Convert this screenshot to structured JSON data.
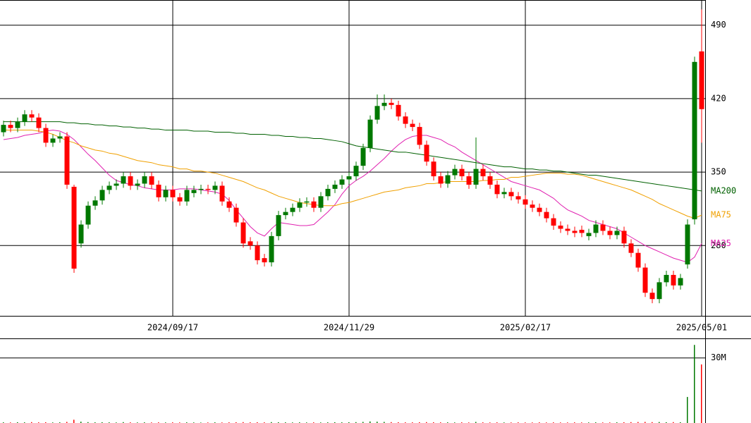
{
  "chart_data": {
    "type": "candlestick",
    "categories": [
      null,
      null,
      null,
      null,
      null,
      null,
      null,
      null,
      null,
      null,
      null,
      null,
      null,
      null,
      null,
      null,
      null,
      null,
      null,
      null,
      null,
      null,
      null,
      null,
      "2024/09/17",
      null,
      null,
      null,
      null,
      null,
      null,
      null,
      null,
      null,
      null,
      null,
      null,
      null,
      null,
      null,
      null,
      null,
      null,
      null,
      null,
      null,
      null,
      null,
      null,
      "2024/11/29",
      null,
      null,
      null,
      null,
      null,
      null,
      null,
      null,
      null,
      null,
      null,
      null,
      null,
      null,
      null,
      null,
      null,
      null,
      null,
      null,
      null,
      null,
      null,
      null,
      "2025/02/17",
      null,
      null,
      null,
      null,
      null,
      null,
      null,
      null,
      null,
      null,
      null,
      null,
      null,
      null,
      null,
      null,
      null,
      null,
      null,
      null,
      null,
      null,
      null,
      null,
      "2025/05/01"
    ],
    "open": [
      388,
      395,
      392,
      398,
      405,
      402,
      392,
      378,
      382,
      384,
      336,
      282,
      300,
      318,
      323,
      333,
      337,
      339,
      346,
      337,
      339,
      346,
      338,
      326,
      333,
      326,
      322,
      330,
      333,
      334,
      333,
      337,
      322,
      316,
      302,
      284,
      280,
      268,
      264,
      289,
      309,
      312,
      316,
      321,
      322,
      316,
      327,
      334,
      338,
      343,
      346,
      356,
      373,
      400,
      413,
      416,
      414,
      403,
      396,
      393,
      376,
      360,
      346,
      339,
      347,
      353,
      346,
      338,
      353,
      346,
      338,
      329,
      331,
      327,
      324,
      319,
      316,
      312,
      306,
      299,
      296,
      294,
      295,
      289,
      292,
      300,
      294,
      290,
      294,
      282,
      273,
      259,
      235,
      229,
      245,
      252,
      242,
      262,
      305,
      465
    ],
    "high": [
      399,
      399,
      402,
      409,
      409,
      406,
      396,
      386,
      388,
      388,
      338,
      304,
      322,
      327,
      337,
      341,
      343,
      350,
      350,
      343,
      350,
      350,
      342,
      337,
      337,
      330,
      337,
      337,
      338,
      338,
      341,
      341,
      326,
      320,
      306,
      288,
      284,
      272,
      293,
      313,
      316,
      320,
      325,
      326,
      326,
      331,
      338,
      342,
      347,
      350,
      360,
      377,
      404,
      424,
      424,
      420,
      418,
      407,
      400,
      397,
      380,
      364,
      350,
      351,
      357,
      357,
      350,
      383,
      357,
      350,
      342,
      335,
      335,
      331,
      328,
      323,
      320,
      316,
      310,
      303,
      300,
      298,
      299,
      296,
      304,
      304,
      298,
      298,
      298,
      286,
      277,
      263,
      239,
      249,
      256,
      256,
      253,
      305,
      460,
      505
    ],
    "low": [
      384,
      388,
      388,
      394,
      398,
      388,
      374,
      374,
      378,
      334,
      254,
      278,
      296,
      314,
      319,
      329,
      333,
      335,
      333,
      333,
      335,
      334,
      322,
      322,
      322,
      318,
      318,
      326,
      329,
      329,
      329,
      318,
      312,
      298,
      278,
      276,
      262,
      260,
      260,
      285,
      305,
      308,
      312,
      317,
      312,
      312,
      323,
      330,
      334,
      339,
      342,
      352,
      369,
      396,
      409,
      410,
      399,
      392,
      389,
      372,
      356,
      342,
      335,
      335,
      343,
      342,
      334,
      334,
      342,
      334,
      325,
      325,
      323,
      320,
      315,
      312,
      308,
      302,
      295,
      292,
      290,
      288,
      288,
      285,
      288,
      290,
      286,
      286,
      278,
      269,
      255,
      231,
      225,
      225,
      241,
      238,
      238,
      258,
      300,
      378
    ],
    "close": [
      395,
      392,
      398,
      405,
      402,
      392,
      378,
      382,
      384,
      338,
      258,
      300,
      318,
      323,
      333,
      337,
      339,
      346,
      337,
      339,
      346,
      338,
      326,
      333,
      326,
      322,
      333,
      333,
      334,
      333,
      337,
      322,
      316,
      302,
      282,
      280,
      266,
      264,
      289,
      309,
      312,
      316,
      321,
      322,
      316,
      327,
      334,
      338,
      343,
      346,
      356,
      373,
      400,
      413,
      416,
      414,
      403,
      396,
      393,
      376,
      360,
      346,
      339,
      347,
      353,
      346,
      338,
      353,
      346,
      338,
      329,
      331,
      327,
      324,
      319,
      316,
      312,
      306,
      299,
      296,
      294,
      292,
      292,
      292,
      300,
      294,
      290,
      294,
      282,
      273,
      259,
      235,
      229,
      245,
      252,
      242,
      249,
      300,
      455,
      410
    ],
    "up_color": "#007800",
    "down_color": "#ff0000",
    "ylim": [
      213,
      514
    ],
    "yticks": [
      280,
      350,
      420,
      490
    ],
    "grid": true,
    "series": [
      {
        "name": "MA25",
        "color": "#e020b0",
        "values": [
          381,
          382,
          383,
          385,
          386,
          387,
          389,
          390,
          389,
          386,
          381,
          374,
          367,
          361,
          354,
          347,
          342,
          340,
          338,
          337,
          335,
          334,
          333,
          333,
          333,
          334,
          334,
          334,
          333,
          332,
          331,
          329,
          323,
          314,
          306,
          298,
          292,
          289,
          296,
          302,
          301,
          300,
          299,
          299,
          300,
          306,
          312,
          319,
          329,
          337,
          342,
          346,
          351,
          357,
          363,
          370,
          376,
          381,
          384,
          385,
          385,
          383,
          381,
          377,
          374,
          369,
          365,
          361,
          357,
          353,
          349,
          345,
          341,
          339,
          337,
          335,
          333,
          329,
          325,
          319,
          314,
          311,
          308,
          304,
          302,
          300,
          298,
          296,
          292,
          288,
          284,
          280,
          277,
          274,
          271,
          268,
          266,
          264,
          269,
          282
        ]
      },
      {
        "name": "MA75",
        "color": "#f0a000",
        "values": [
          390,
          390,
          390,
          390,
          390,
          389,
          388,
          386,
          383,
          380,
          378,
          375,
          373,
          371,
          370,
          368,
          367,
          365,
          363,
          361,
          360,
          359,
          357,
          356,
          355,
          353,
          353,
          351,
          351,
          350,
          349,
          347,
          345,
          343,
          341,
          338,
          335,
          333,
          330,
          327,
          325,
          323,
          321,
          320,
          319,
          318,
          318,
          318,
          320,
          321,
          323,
          325,
          327,
          329,
          331,
          332,
          333,
          335,
          336,
          337,
          339,
          339,
          340,
          341,
          341,
          341,
          341,
          341,
          342,
          342,
          343,
          343,
          345,
          345,
          346,
          347,
          348,
          349,
          349,
          349,
          348,
          348,
          347,
          345,
          343,
          341,
          339,
          337,
          335,
          333,
          330,
          327,
          324,
          320,
          317,
          314,
          311,
          308,
          306,
          309
        ]
      },
      {
        "name": "MA200",
        "color": "#006000",
        "values": [
          398,
          398,
          398,
          398,
          398,
          398,
          398,
          398,
          398,
          397,
          397,
          396,
          396,
          395,
          395,
          394,
          394,
          393,
          393,
          392,
          392,
          391,
          391,
          390,
          390,
          390,
          390,
          389,
          389,
          389,
          388,
          388,
          388,
          387,
          387,
          386,
          386,
          386,
          385,
          385,
          384,
          384,
          383,
          383,
          382,
          382,
          381,
          380,
          379,
          377,
          375,
          374,
          373,
          372,
          371,
          370,
          369,
          369,
          368,
          367,
          366,
          365,
          364,
          363,
          362,
          361,
          360,
          359,
          358,
          357,
          356,
          355,
          355,
          354,
          353,
          353,
          352,
          352,
          351,
          351,
          350,
          349,
          348,
          347,
          347,
          346,
          345,
          344,
          343,
          342,
          341,
          340,
          339,
          338,
          337,
          336,
          335,
          334,
          333,
          332
        ]
      }
    ],
    "volume": {
      "ylim": [
        0,
        39000000
      ],
      "yticks": [
        {
          "value": 30000000,
          "label": "30M"
        }
      ],
      "values": [
        300000,
        250000,
        350000,
        300000,
        400000,
        300000,
        350000,
        250000,
        300000,
        500000,
        1500000,
        600000,
        400000,
        300000,
        350000,
        300000,
        250000,
        400000,
        300000,
        250000,
        300000,
        250000,
        300000,
        250000,
        300000,
        250000,
        300000,
        250000,
        200000,
        250000,
        300000,
        250000,
        300000,
        350000,
        400000,
        300000,
        350000,
        300000,
        400000,
        350000,
        300000,
        250000,
        300000,
        250000,
        300000,
        250000,
        300000,
        350000,
        300000,
        350000,
        400000,
        500000,
        700000,
        600000,
        500000,
        400000,
        350000,
        300000,
        300000,
        350000,
        400000,
        350000,
        300000,
        300000,
        250000,
        300000,
        250000,
        500000,
        300000,
        250000,
        300000,
        250000,
        250000,
        300000,
        250000,
        250000,
        300000,
        250000,
        300000,
        250000,
        250000,
        300000,
        250000,
        250000,
        300000,
        250000,
        250000,
        300000,
        350000,
        400000,
        450000,
        500000,
        400000,
        450000,
        350000,
        400000,
        350000,
        12000000,
        36000000,
        27000000
      ]
    }
  }
}
